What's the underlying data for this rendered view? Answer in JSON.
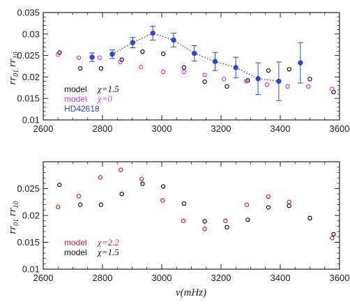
{
  "chart_data": [
    {
      "type": "scatter",
      "panel": "top",
      "xlim": [
        2600,
        3600
      ],
      "ylim": [
        0.01,
        0.035
      ],
      "xticks": [
        "2600",
        "2800",
        "3000",
        "3200",
        "3400",
        "3600"
      ],
      "yticks": [
        "0.01",
        "0.015",
        "0.02",
        "0.025",
        "0.03",
        "0.035"
      ],
      "xticks_values": [
        2600,
        2800,
        3000,
        3200,
        3400,
        3600
      ],
      "yticks_values": [
        0.01,
        0.015,
        0.02,
        0.025,
        0.03,
        0.035
      ],
      "xlabel": "",
      "ylabel": "rr01 rr10",
      "legend": [
        {
          "text": "model",
          "chi": "χ=1.5",
          "color": "#111111"
        },
        {
          "text": "model",
          "chi": "χ=0",
          "color": "#d838c8"
        },
        {
          "text": "HD42618",
          "chi": "",
          "color": "#3344cc"
        }
      ],
      "series": [
        {
          "name": "model χ=1.5",
          "color": "#111111",
          "marker": "open-circle",
          "x": [
            2655,
            2725,
            2795,
            2865,
            2935,
            3005,
            3075,
            3145,
            3220,
            3290,
            3360,
            3430,
            3500,
            3580
          ],
          "y": [
            0.0257,
            0.022,
            0.022,
            0.024,
            0.0259,
            0.0254,
            0.0222,
            0.0189,
            0.0178,
            0.0192,
            0.0215,
            0.0218,
            0.0195,
            0.0165
          ]
        },
        {
          "name": "model χ=0",
          "color": "#d838c8",
          "marker": "open-circle",
          "x": [
            2650,
            2720,
            2790,
            2860,
            2930,
            3005,
            3075,
            3145,
            3210,
            3285,
            3355,
            3425,
            3495,
            3575
          ],
          "y": [
            0.0252,
            0.0245,
            0.0245,
            0.0235,
            0.0223,
            0.0212,
            0.0212,
            0.0205,
            0.0195,
            0.019,
            0.0182,
            0.0178,
            0.0178,
            0.0172
          ]
        },
        {
          "name": "HD42618",
          "color": "#3344cc",
          "marker": "filled-circle",
          "x": [
            2765,
            2833,
            2902,
            2970,
            3040,
            3110,
            3180,
            3250,
            3325,
            3395,
            3468
          ],
          "y": [
            0.0246,
            0.0253,
            0.028,
            0.0302,
            0.0286,
            0.0255,
            0.0236,
            0.0222,
            0.0196,
            0.019,
            0.0233
          ],
          "err": [
            0.001,
            0.001,
            0.0012,
            0.0016,
            0.0016,
            0.0018,
            0.0021,
            0.0024,
            0.0037,
            0.0045,
            0.0047
          ],
          "connected_x": [
            2833,
            2902,
            2970,
            3040,
            3110,
            3180,
            3250,
            3325,
            3395
          ]
        }
      ]
    },
    {
      "type": "scatter",
      "panel": "bottom",
      "xlim": [
        2600,
        3600
      ],
      "ylim": [
        0.01,
        0.03
      ],
      "xticks": [
        "2600",
        "2800",
        "3000",
        "3200",
        "3400",
        "3600"
      ],
      "yticks": [
        "0.01",
        "0.015",
        "0.02",
        "0.025"
      ],
      "xticks_values": [
        2600,
        2800,
        3000,
        3200,
        3400,
        3600
      ],
      "yticks_values": [
        0.01,
        0.015,
        0.02,
        0.025
      ],
      "xlabel": "ν(mHz)",
      "ylabel": "rr01 rr10",
      "legend": [
        {
          "text": "model",
          "chi": "χ=2.2",
          "color": "#cc2222"
        },
        {
          "text": "model",
          "chi": "χ=1.5",
          "color": "#111111"
        }
      ],
      "series": [
        {
          "name": "model χ=2.2",
          "color": "#cc2222",
          "marker": "open-circle",
          "x": [
            2650,
            2720,
            2793,
            2862,
            2932,
            3003,
            3073,
            3145,
            3215,
            3287,
            3360,
            3430,
            3500,
            3575
          ],
          "y": [
            0.0216,
            0.0236,
            0.0271,
            0.0285,
            0.0268,
            0.0228,
            0.019,
            0.0175,
            0.019,
            0.022,
            0.0235,
            0.0225,
            0.0195,
            0.0158
          ]
        },
        {
          "name": "model χ=1.5",
          "color": "#111111",
          "marker": "open-circle",
          "x": [
            2655,
            2725,
            2795,
            2865,
            2935,
            3005,
            3075,
            3145,
            3220,
            3290,
            3360,
            3430,
            3500,
            3580
          ],
          "y": [
            0.0257,
            0.022,
            0.022,
            0.024,
            0.0259,
            0.0254,
            0.0222,
            0.0189,
            0.0178,
            0.0192,
            0.0215,
            0.0218,
            0.0195,
            0.0165
          ]
        }
      ]
    }
  ]
}
